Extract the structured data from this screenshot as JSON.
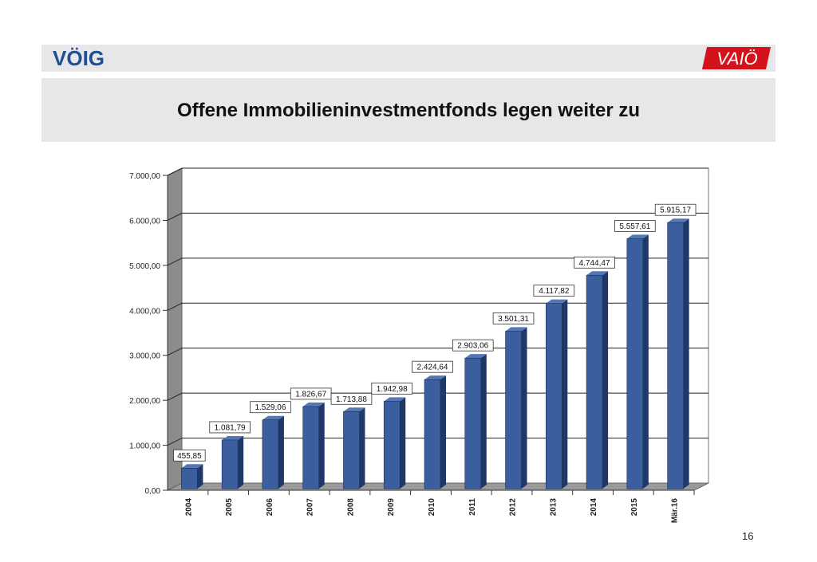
{
  "header": {
    "logo_left": "VÖIG",
    "logo_right": "VAIÖ",
    "title": "Offene Immobilieninvestmentfonds legen weiter zu"
  },
  "page_number": "16",
  "colors": {
    "bar_front": "#3b5f9e",
    "bar_side": "#1f3868",
    "bar_top": "#5577b3",
    "band": "#e7e7ea",
    "logo_left": "#1f4e93",
    "logo_right": "#d4121c"
  },
  "chart_data": {
    "type": "bar",
    "title": "",
    "xlabel": "",
    "ylabel": "",
    "ylim": [
      0,
      7000
    ],
    "yticks": [
      "0,00",
      "1.000,00",
      "2.000,00",
      "3.000,00",
      "4.000,00",
      "5.000,00",
      "6.000,00",
      "7.000,00"
    ],
    "categories": [
      "2004",
      "2005",
      "2006",
      "2007",
      "2008",
      "2009",
      "2010",
      "2011",
      "2012",
      "2013",
      "2014",
      "2015",
      "Mär.16"
    ],
    "values": [
      455.85,
      1081.79,
      1529.06,
      1826.67,
      1713.88,
      1942.98,
      2424.64,
      2903.06,
      3501.31,
      4117.82,
      4744.47,
      5557.61,
      5915.17
    ],
    "labels": [
      "455,85",
      "1.081,79",
      "1.529,06",
      "1.826,67",
      "1.713,88",
      "1.942,98",
      "2.424,64",
      "2.903,06",
      "3.501,31",
      "4.117,82",
      "4.744,47",
      "5.557,61",
      "5.915,17"
    ]
  }
}
